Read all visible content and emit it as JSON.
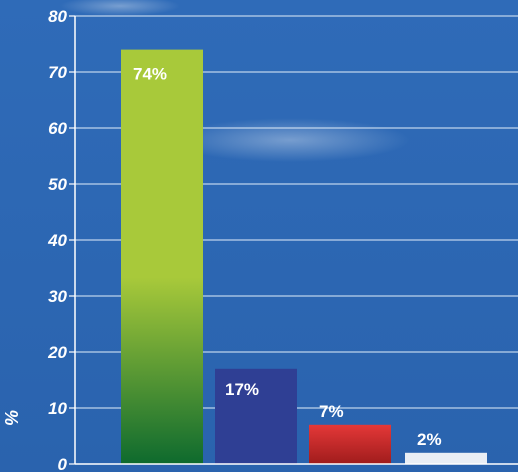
{
  "chart_data": {
    "type": "bar",
    "categories": [
      "",
      "",
      "",
      ""
    ],
    "values": [
      74,
      17,
      7,
      2
    ],
    "data_labels": [
      "74%",
      "17%",
      "7%",
      "2%"
    ],
    "ylabel": "%",
    "ylim": [
      0,
      80
    ],
    "yticks": [
      0,
      10,
      20,
      30,
      40,
      50,
      60,
      70,
      80
    ],
    "grid": true,
    "colors": {
      "background_top": "#2f6bb8",
      "background_bottom": "#2a63ae",
      "gridline": "#d7e6f6",
      "bar1_top": "#a8c93a",
      "bar1_bottom": "#0e6a2e",
      "bar2": "#2f3f94",
      "bar3_top": "#e43838",
      "bar3_bottom": "#a01c1c",
      "bar4": "#e9eef5",
      "text": "#ffffff"
    }
  }
}
